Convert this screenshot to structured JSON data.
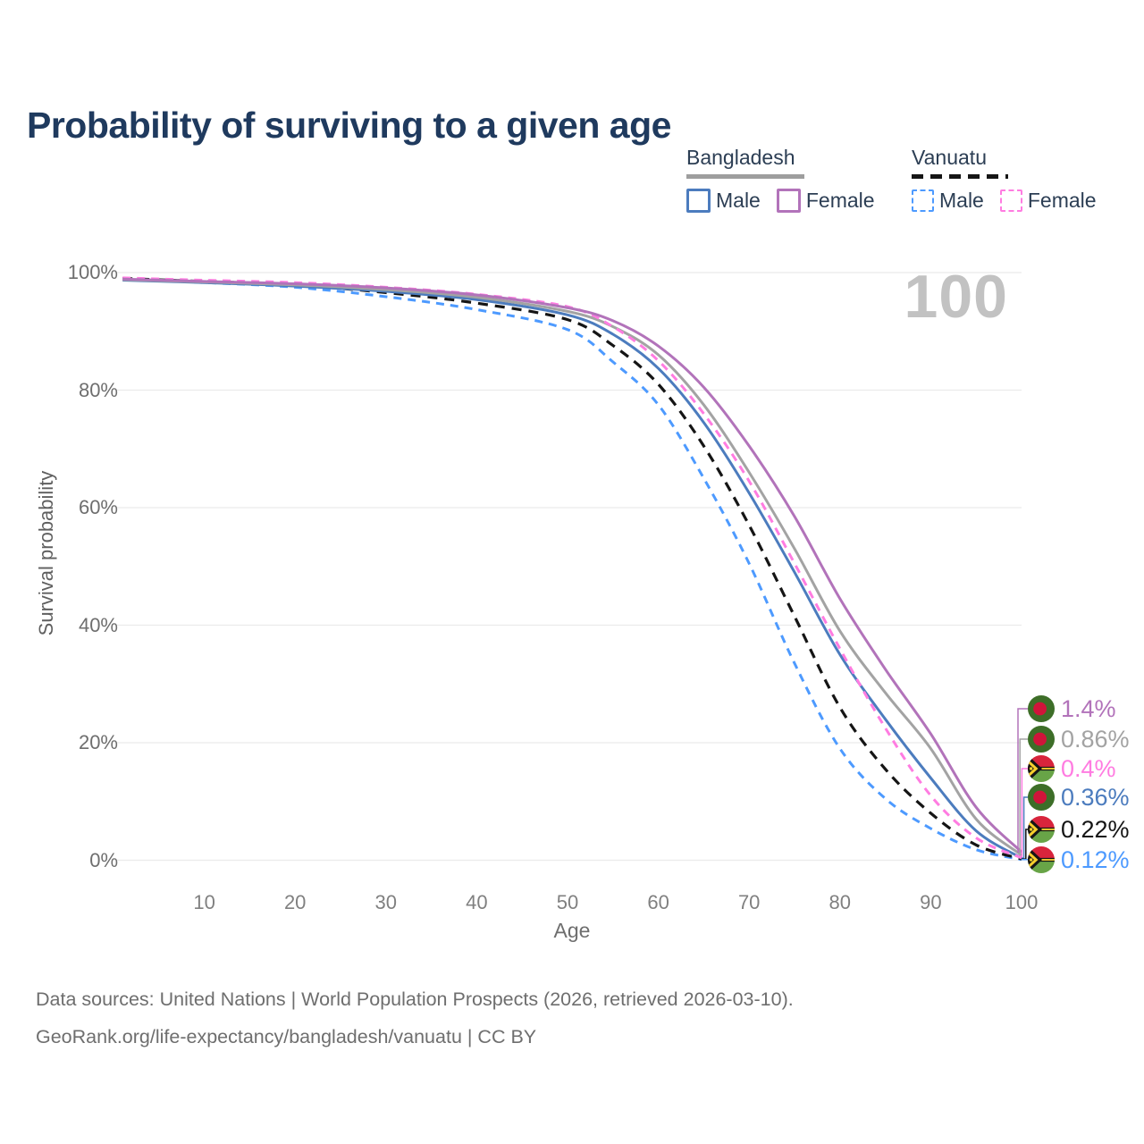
{
  "title": "Probability of surviving to a given age",
  "watermark": "100",
  "legend": {
    "groups": [
      {
        "name": "Bangladesh",
        "line_style": "solid",
        "line_color": "#9e9e9e",
        "items": [
          {
            "label": "Male",
            "color": "#4c7cbe"
          },
          {
            "label": "Female",
            "color": "#b273ba"
          }
        ]
      },
      {
        "name": "Vanuatu",
        "line_style": "dashed",
        "line_color": "#151515",
        "items": [
          {
            "label": "Male",
            "color": "#4d9aff"
          },
          {
            "label": "Female",
            "color": "#ff7ce1"
          }
        ]
      }
    ]
  },
  "chart_data": {
    "type": "line",
    "title": "Probability of surviving to a given age",
    "xlabel": "Age",
    "ylabel": "Survival probability",
    "xlim": [
      0,
      100
    ],
    "ylim": [
      0,
      100
    ],
    "grid": "horizontal",
    "x": [
      1,
      10,
      20,
      30,
      40,
      50,
      55,
      60,
      65,
      70,
      75,
      80,
      85,
      90,
      95,
      100
    ],
    "xticks": [
      10,
      20,
      30,
      40,
      50,
      60,
      70,
      80,
      90,
      100
    ],
    "ytick_values": [
      0,
      20,
      40,
      60,
      80,
      100
    ],
    "ytick_labels": [
      "0%",
      "20%",
      "40%",
      "60%",
      "80%",
      "100%"
    ],
    "series": [
      {
        "id": "vu_male",
        "name": "Vanuatu Male",
        "country": "Vanuatu",
        "sex": "Male",
        "color": "#4d9aff",
        "dash": "9 7",
        "width": 3,
        "values": [
          98.9,
          98.3,
          97.5,
          95.9,
          93.7,
          90.3,
          84.8,
          77.5,
          65.0,
          50.5,
          33.5,
          19.0,
          10.5,
          5.4,
          1.8,
          0.12
        ]
      },
      {
        "id": "vu_both",
        "name": "Vanuatu Both sexes",
        "country": "Vanuatu",
        "sex": "Both",
        "color": "#151515",
        "dash": "11 8",
        "width": 3.2,
        "values": [
          99.0,
          98.5,
          97.9,
          96.6,
          94.8,
          92.0,
          87.6,
          81.0,
          70.5,
          57.0,
          41.5,
          26.0,
          15.5,
          8.0,
          2.6,
          0.22
        ]
      },
      {
        "id": "bd_male",
        "name": "Bangladesh Male",
        "country": "Bangladesh",
        "sex": "Male",
        "color": "#4c7cbe",
        "dash": null,
        "width": 3,
        "values": [
          98.7,
          98.3,
          97.7,
          96.8,
          95.4,
          92.8,
          89.5,
          83.7,
          74.5,
          62.5,
          49.0,
          35.0,
          24.0,
          14.0,
          5.0,
          0.36
        ]
      },
      {
        "id": "bd_both",
        "name": "Bangladesh Both sexes",
        "country": "Bangladesh",
        "sex": "Both",
        "color": "#a3a3a3",
        "dash": null,
        "width": 3,
        "values": [
          98.8,
          98.4,
          97.9,
          97.1,
          95.8,
          93.4,
          90.8,
          86.0,
          77.5,
          66.0,
          53.0,
          39.0,
          28.5,
          19.0,
          7.0,
          0.86
        ]
      },
      {
        "id": "vu_female",
        "name": "Vanuatu Female",
        "country": "Vanuatu",
        "sex": "Female",
        "color": "#ff7ce1",
        "dash": "9 7",
        "width": 3,
        "values": [
          99.1,
          98.7,
          98.3,
          97.5,
          96.3,
          94.2,
          90.8,
          85.0,
          76.0,
          64.5,
          50.5,
          36.0,
          22.5,
          11.0,
          3.8,
          0.4
        ]
      },
      {
        "id": "bd_female",
        "name": "Bangladesh Female",
        "country": "Bangladesh",
        "sex": "Female",
        "color": "#b273ba",
        "dash": null,
        "width": 3,
        "values": [
          98.9,
          98.5,
          98.1,
          97.4,
          96.2,
          94.0,
          91.8,
          87.5,
          80.5,
          70.5,
          58.5,
          44.5,
          32.5,
          21.5,
          9.0,
          1.4
        ]
      }
    ],
    "end_labels": [
      {
        "label": "1.4%",
        "series": "bd_female",
        "flag": "bangladesh",
        "color": "#b273ba"
      },
      {
        "label": "0.86%",
        "series": "bd_both",
        "flag": "bangladesh",
        "color": "#a3a3a3"
      },
      {
        "label": "0.4%",
        "series": "vu_female",
        "flag": "vanuatu",
        "color": "#ff7ce1"
      },
      {
        "label": "0.36%",
        "series": "bd_male",
        "flag": "bangladesh",
        "color": "#4c7cbe"
      },
      {
        "label": "0.22%",
        "series": "vu_both",
        "flag": "vanuatu",
        "color": "#151515"
      },
      {
        "label": "0.12%",
        "series": "vu_male",
        "flag": "vanuatu",
        "color": "#4d9aff"
      }
    ]
  },
  "footer": {
    "line1": "Data sources: United Nations | World Population Prospects (2026, retrieved 2026-03-10).",
    "line2": "GeoRank.org/life-expectancy/bangladesh/vanuatu | CC BY"
  }
}
